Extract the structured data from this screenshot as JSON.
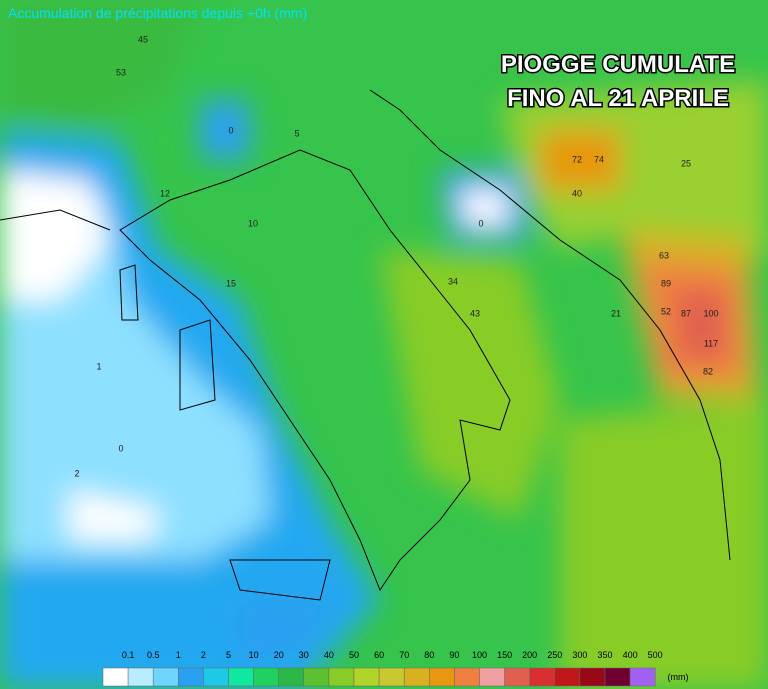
{
  "title": "Accumulation de précipitations depuis +0h (mm)",
  "overlay": {
    "line1": "PIOGGE CUMULATE",
    "line2": "FINO AL 21 APRILE"
  },
  "grid_values": [
    72,
    74,
    89,
    87,
    100,
    117,
    82,
    63,
    52,
    40,
    53,
    45,
    43,
    34,
    25,
    21,
    0,
    0,
    0,
    1,
    2,
    5,
    10,
    12,
    15
  ],
  "legend": {
    "labels": [
      "0.1",
      "0.5",
      "1",
      "2",
      "5",
      "10",
      "20",
      "30",
      "40",
      "50",
      "60",
      "70",
      "80",
      "90",
      "100",
      "150",
      "200",
      "250",
      "300",
      "350",
      "400",
      "500"
    ],
    "colors": [
      "#ffffff",
      "#b8ecff",
      "#70d4ff",
      "#2aa0f0",
      "#1ec8e8",
      "#10e8a0",
      "#20d060",
      "#2cb848",
      "#5cc030",
      "#88cc28",
      "#b0d428",
      "#c8c830",
      "#d8b020",
      "#e89810",
      "#f08040",
      "#f0a0a0",
      "#e06050",
      "#d83030",
      "#c01818",
      "#980818",
      "#700030",
      "#a060f0"
    ],
    "unit": "(mm)"
  }
}
